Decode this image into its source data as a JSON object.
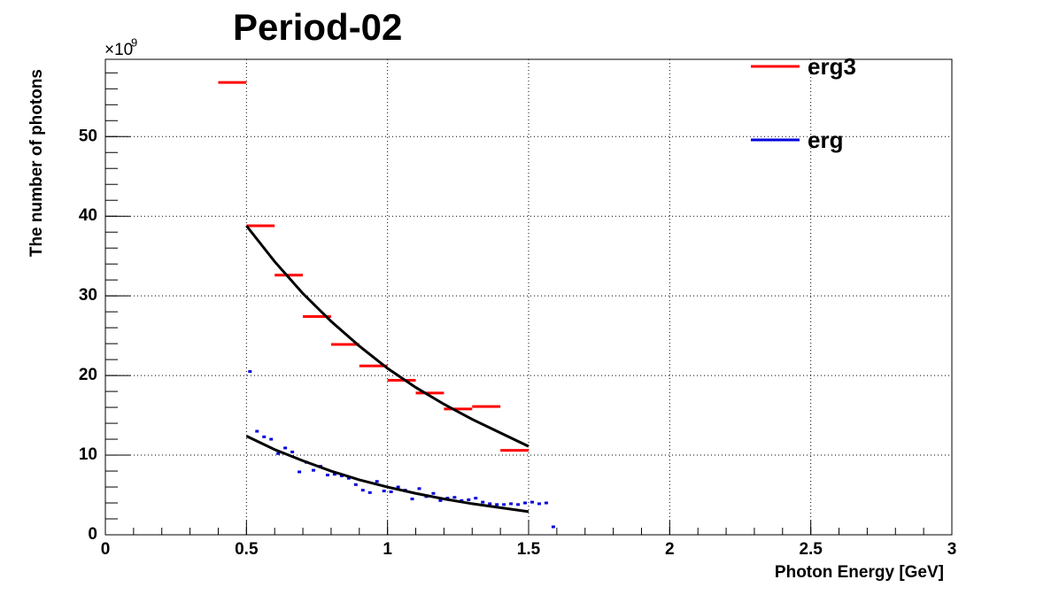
{
  "chart_data": {
    "type": "histogram",
    "title": "Period-02",
    "xlabel": "Photon Energy [GeV]",
    "ylabel": "The number of photons",
    "y_multiplier": {
      "base": "×10",
      "exponent": "9"
    },
    "xlim": [
      0,
      3
    ],
    "ylim": [
      0,
      59.7
    ],
    "xticks": [
      0,
      0.5,
      1,
      1.5,
      2,
      2.5,
      3
    ],
    "yticks": [
      0,
      10,
      20,
      30,
      40,
      50
    ],
    "x_minor_step": 0.1,
    "y_minor_step": 2,
    "grid": true,
    "legend": "top-right",
    "series": [
      {
        "name": "erg3",
        "color": "#ff0000",
        "bins": [
          0.4,
          0.5,
          0.6,
          0.7,
          0.8,
          0.9,
          1.0,
          1.1,
          1.2,
          1.3,
          1.4,
          1.5
        ],
        "values": [
          56.8,
          38.8,
          32.6,
          27.4,
          23.9,
          21.2,
          19.4,
          17.8,
          15.8,
          16.1,
          10.6
        ]
      },
      {
        "name": "erg",
        "color": "#0000dd",
        "bins": [
          0.5,
          0.525,
          0.55,
          0.575,
          0.6,
          0.625,
          0.65,
          0.675,
          0.7,
          0.725,
          0.75,
          0.775,
          0.8,
          0.825,
          0.85,
          0.875,
          0.9,
          0.925,
          0.95,
          0.975,
          1.0,
          1.025,
          1.05,
          1.075,
          1.1,
          1.125,
          1.15,
          1.175,
          1.2,
          1.225,
          1.25,
          1.275,
          1.3,
          1.325,
          1.35,
          1.375,
          1.4,
          1.425,
          1.45,
          1.475,
          1.5,
          1.525,
          1.55,
          1.575,
          1.6
        ],
        "values": [
          20.5,
          13.0,
          12.3,
          12.0,
          10.2,
          10.9,
          10.4,
          7.9,
          9.1,
          8.1,
          8.6,
          7.5,
          7.6,
          7.4,
          7.1,
          6.3,
          5.6,
          5.3,
          6.7,
          5.5,
          5.4,
          6.0,
          5.6,
          4.5,
          5.8,
          4.8,
          5.2,
          4.3,
          4.6,
          4.7,
          4.3,
          4.4,
          4.6,
          4.1,
          3.9,
          3.8,
          3.8,
          3.9,
          3.8,
          4.0,
          4.1,
          3.9,
          4.0,
          1.0
        ]
      }
    ],
    "fits": [
      {
        "color": "#000000",
        "x": [
          0.5,
          0.6,
          0.7,
          0.8,
          0.9,
          1.0,
          1.1,
          1.2,
          1.3,
          1.4,
          1.5
        ],
        "values": [
          38.8,
          34.3,
          30.3,
          26.8,
          23.7,
          20.9,
          18.5,
          16.4,
          14.5,
          12.8,
          11.1
        ]
      },
      {
        "color": "#000000",
        "x": [
          0.5,
          0.6,
          0.7,
          0.8,
          0.9,
          1.0,
          1.1,
          1.2,
          1.3,
          1.4,
          1.5
        ],
        "values": [
          12.4,
          10.7,
          9.3,
          8.0,
          6.9,
          6.0,
          5.2,
          4.5,
          3.9,
          3.4,
          2.9
        ]
      }
    ]
  }
}
